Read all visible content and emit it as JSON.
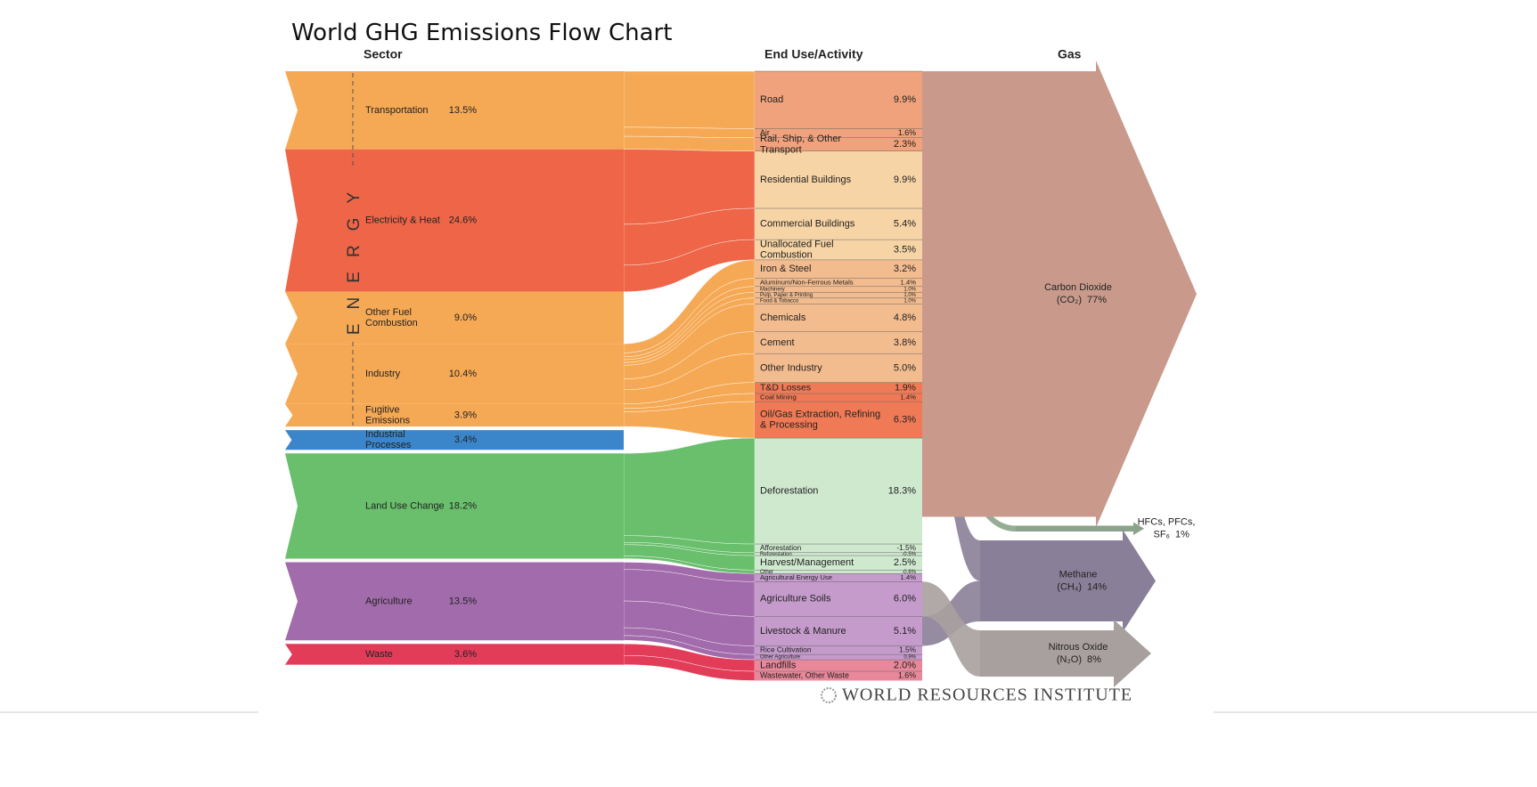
{
  "chart_data": {
    "type": "sankey",
    "title": "World GHG Emissions Flow Chart",
    "column_titles": {
      "sector": "Sector",
      "end_use": "End Use/Activity",
      "gas": "Gas"
    },
    "energy_label": "ENERGY",
    "footer": "WORLD RESOURCES INSTITUTE",
    "sectors": [
      {
        "name": "Transportation",
        "value": 13.5,
        "value_label": "13.5%",
        "color": "#f6a955"
      },
      {
        "name": "Electricity & Heat",
        "value": 24.6,
        "value_label": "24.6%",
        "color": "#ee6548"
      },
      {
        "name": "Other Fuel Combustion",
        "value": 9.0,
        "value_label": "9.0%",
        "color": "#f6a955"
      },
      {
        "name": "Industry",
        "value": 10.4,
        "value_label": "10.4%",
        "color": "#f6a955"
      },
      {
        "name": "Fugitive Emissions",
        "value": 3.9,
        "value_label": "3.9%",
        "color": "#f6a955"
      },
      {
        "name": "Industrial Processes",
        "value": 3.4,
        "value_label": "3.4%",
        "color": "#3b86cb"
      },
      {
        "name": "Land Use Change",
        "value": 18.2,
        "value_label": "18.2%",
        "color": "#69bf6c"
      },
      {
        "name": "Agriculture",
        "value": 13.5,
        "value_label": "13.5%",
        "color": "#a26bab"
      },
      {
        "name": "Waste",
        "value": 3.6,
        "value_label": "3.6%",
        "color": "#e23c59"
      }
    ],
    "end_use_groups": [
      {
        "color": "#efa27b",
        "items": [
          {
            "name": "Road",
            "value": 9.9,
            "value_label": "9.9%"
          },
          {
            "name": "Air",
            "value": 1.6,
            "value_label": "1.6%"
          },
          {
            "name": "Rail, Ship, & Other Transport",
            "value": 2.3,
            "value_label": "2.3%"
          }
        ]
      },
      {
        "color": "#f7d4a5",
        "items": [
          {
            "name": "Residential Buildings",
            "value": 9.9,
            "value_label": "9.9%"
          },
          {
            "name": "Commercial Buildings",
            "value": 5.4,
            "value_label": "5.4%"
          },
          {
            "name": "Unallocated Fuel Combustion",
            "value": 3.5,
            "value_label": "3.5%"
          }
        ]
      },
      {
        "color": "#f3bc8f",
        "items": [
          {
            "name": "Iron & Steel",
            "value": 3.2,
            "value_label": "3.2%"
          },
          {
            "name": "Aluminum/Non-Ferrous Metals",
            "value": 1.4,
            "value_label": "1.4%"
          },
          {
            "name": "Machinery",
            "value": 1.0,
            "value_label": "1.0%"
          },
          {
            "name": "Pulp, Paper & Printing",
            "value": 1.0,
            "value_label": "1.0%"
          },
          {
            "name": "Food & Tobacco",
            "value": 1.0,
            "value_label": "1.0%"
          },
          {
            "name": "Chemicals",
            "value": 4.8,
            "value_label": "4.8%"
          },
          {
            "name": "Cement",
            "value": 3.8,
            "value_label": "3.8%"
          },
          {
            "name": "Other Industry",
            "value": 5.0,
            "value_label": "5.0%"
          }
        ]
      },
      {
        "color": "#f07a55",
        "items": [
          {
            "name": "T&D Losses",
            "value": 1.9,
            "value_label": "1.9%"
          },
          {
            "name": "Coal Mining",
            "value": 1.4,
            "value_label": "1.4%"
          },
          {
            "name": "Oil/Gas Extraction, Refining & Processing",
            "value": 6.3,
            "value_label": "6.3%"
          }
        ]
      },
      {
        "color": "#cfe9cf",
        "items": [
          {
            "name": "Deforestation",
            "value": 18.3,
            "value_label": "18.3%"
          },
          {
            "name": "Afforestation",
            "value": -1.5,
            "value_label": "-1.5%"
          },
          {
            "name": "Reforestation",
            "value": -0.5,
            "value_label": "-0.5%"
          },
          {
            "name": "Harvest/Management",
            "value": 2.5,
            "value_label": "2.5%"
          },
          {
            "name": "Other",
            "value": -0.6,
            "value_label": "-0.6%"
          }
        ]
      },
      {
        "color": "#c59bcc",
        "items": [
          {
            "name": "Agricultural Energy Use",
            "value": 1.4,
            "value_label": "1.4%"
          },
          {
            "name": "Agriculture Soils",
            "value": 6.0,
            "value_label": "6.0%"
          },
          {
            "name": "Livestock & Manure",
            "value": 5.1,
            "value_label": "5.1%"
          },
          {
            "name": "Rice Cultivation",
            "value": 1.5,
            "value_label": "1.5%"
          },
          {
            "name": "Other Agriculture",
            "value": 0.9,
            "value_label": "0.9%"
          }
        ]
      },
      {
        "color": "#e8889a",
        "items": [
          {
            "name": "Landfills",
            "value": 2.0,
            "value_label": "2.0%"
          },
          {
            "name": "Wastewater, Other Waste",
            "value": 1.6,
            "value_label": "1.6%"
          }
        ]
      }
    ],
    "gases": [
      {
        "name": "Carbon Dioxide",
        "formula": "(CO₂)",
        "value": 77,
        "value_label": "77%",
        "color": "#c99a8c"
      },
      {
        "name": "HFCs, PFCs,",
        "formula": "SF₆",
        "value": 1,
        "value_label": "1%",
        "color": "#8aa38a"
      },
      {
        "name": "Methane",
        "formula": "(CH₄)",
        "value": 14,
        "value_label": "14%",
        "color": "#8a7f98"
      },
      {
        "name": "Nitrous Oxide",
        "formula": "(N₂O)",
        "value": 8,
        "value_label": "8%",
        "color": "#a8a09e"
      }
    ]
  }
}
